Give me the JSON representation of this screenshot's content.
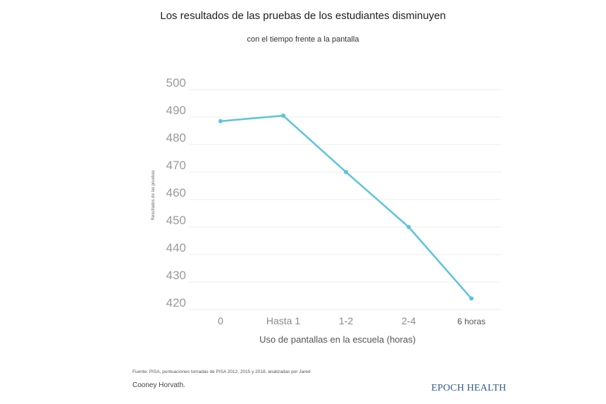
{
  "header": {
    "title": "Los resultados de las pruebas de los estudiantes disminuyen",
    "subtitle": "con el tiempo frente a la pantalla"
  },
  "footer": {
    "source_line1": "Fuente: PISA, puntuaciones tomadas de PISA 2012, 2015 y 2018, analizadas por Jared",
    "source_line2": "Cooney Horvath.",
    "brand": "EPOCH HEALTH"
  },
  "colors": {
    "line": "#5bc4dc",
    "grid": "#eeeeee",
    "brand": "#2f5d8f"
  },
  "chart_data": {
    "type": "line",
    "title": "Los resultados de las pruebas de los estudiantes disminuyen",
    "subtitle": "con el tiempo frente a la pantalla",
    "xlabel": "Uso de pantallas en la escuela (horas)",
    "ylabel": "Resultados de las pruebas",
    "categories": [
      "0",
      "Hasta 1",
      "1-2",
      "2-4",
      "6 horas"
    ],
    "values": [
      488.5,
      490.5,
      470,
      450,
      424
    ],
    "ylim": [
      420,
      500
    ],
    "yticks": [
      500,
      490,
      480,
      470,
      460,
      450,
      440,
      430,
      420
    ],
    "grid": true,
    "legend": "none"
  }
}
